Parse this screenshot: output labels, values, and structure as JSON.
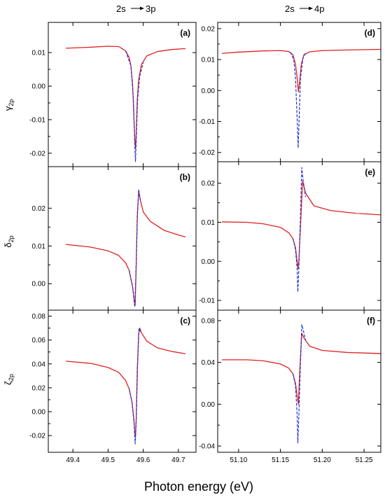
{
  "figure": {
    "column_titles": [
      "2s",
      "3p",
      "2s",
      "4p"
    ],
    "row_ylabels": [
      {
        "greek": "γ",
        "sub": "2p"
      },
      {
        "greek": "δ",
        "sub": "2p"
      },
      {
        "greek": "ζ",
        "sub": "2p"
      }
    ],
    "xlabel": "Photon energy (eV)",
    "colors": {
      "solid": "#e02020",
      "dashed": "#2233dd"
    }
  },
  "chart_data": [
    {
      "type": "line",
      "panel": "(a)",
      "xlim": [
        49.33,
        49.75
      ],
      "ylim": [
        -0.024,
        0.019
      ],
      "yticks": [
        "0.01",
        "0.00",
        "-0.01",
        "-0.02"
      ],
      "ytick_values": [
        0.01,
        0.0,
        -0.01,
        -0.02
      ],
      "xticks": [],
      "xtick_values": [],
      "resonance": {
        "E0": 49.577,
        "width": 0.012,
        "q": 0.0,
        "shift": 0.001
      },
      "series": [
        {
          "style": "solid",
          "points": [
            [
              49.38,
              0.0113
            ],
            [
              49.45,
              0.0116
            ],
            [
              49.5,
              0.0119
            ],
            [
              49.53,
              0.0118
            ],
            [
              49.55,
              0.0105
            ],
            [
              49.56,
              0.0085
            ],
            [
              49.565,
              0.006
            ],
            [
              49.57,
              0.0
            ],
            [
              49.573,
              -0.008
            ],
            [
              49.576,
              -0.016
            ],
            [
              49.578,
              -0.0185
            ],
            [
              49.58,
              -0.014
            ],
            [
              49.583,
              -0.004
            ],
            [
              49.587,
              0.002
            ],
            [
              49.595,
              0.0065
            ],
            [
              49.61,
              0.009
            ],
            [
              49.64,
              0.0103
            ],
            [
              49.68,
              0.0109
            ],
            [
              49.72,
              0.0112
            ]
          ]
        },
        {
          "style": "dashed",
          "points": [
            [
              49.55,
              0.0105
            ],
            [
              49.565,
              0.006
            ],
            [
              49.572,
              -0.004
            ],
            [
              49.576,
              -0.018
            ],
            [
              49.578,
              -0.0225
            ],
            [
              49.58,
              -0.016
            ],
            [
              49.584,
              -0.004
            ],
            [
              49.59,
              0.003
            ],
            [
              49.6,
              0.007
            ]
          ]
        }
      ]
    },
    {
      "type": "line",
      "panel": "(b)",
      "xlim": [
        49.33,
        49.75
      ],
      "ylim": [
        -0.007,
        0.031
      ],
      "yticks": [
        "0.02",
        "0.01",
        "0.00"
      ],
      "ytick_values": [
        0.02,
        0.01,
        0.0
      ],
      "xticks": [],
      "xtick_values": [],
      "series": [
        {
          "style": "solid",
          "points": [
            [
              49.38,
              0.0104
            ],
            [
              49.45,
              0.0097
            ],
            [
              49.5,
              0.0087
            ],
            [
              49.53,
              0.0075
            ],
            [
              49.55,
              0.0055
            ],
            [
              49.56,
              0.0035
            ],
            [
              49.57,
              -0.001
            ],
            [
              49.575,
              -0.005
            ],
            [
              49.577,
              -0.0057
            ],
            [
              49.58,
              0.005
            ],
            [
              49.583,
              0.018
            ],
            [
              49.587,
              0.0245
            ],
            [
              49.592,
              0.022
            ],
            [
              49.6,
              0.019
            ],
            [
              49.62,
              0.0165
            ],
            [
              49.66,
              0.0141
            ],
            [
              49.7,
              0.0129
            ],
            [
              49.72,
              0.0124
            ]
          ]
        },
        {
          "style": "dashed",
          "points": [
            [
              49.56,
              0.0035
            ],
            [
              49.57,
              -0.001
            ],
            [
              49.576,
              -0.0062
            ],
            [
              49.579,
              0.002
            ],
            [
              49.583,
              0.017
            ],
            [
              49.587,
              0.025
            ],
            [
              49.592,
              0.022
            ]
          ]
        }
      ]
    },
    {
      "type": "line",
      "panel": "(c)",
      "xlim": [
        49.33,
        49.75
      ],
      "ylim": [
        -0.034,
        0.085
      ],
      "yticks": [
        "0.08",
        "0.06",
        "0.04",
        "0.02",
        "0.00",
        "-0.02"
      ],
      "ytick_values": [
        0.08,
        0.06,
        0.04,
        0.02,
        0.0,
        -0.02
      ],
      "xticks": [
        "49.4",
        "49.5",
        "49.6",
        "49.7"
      ],
      "xtick_values": [
        49.4,
        49.5,
        49.6,
        49.7
      ],
      "series": [
        {
          "style": "solid",
          "points": [
            [
              49.38,
              0.0423
            ],
            [
              49.45,
              0.0405
            ],
            [
              49.5,
              0.037
            ],
            [
              49.53,
              0.033
            ],
            [
              49.55,
              0.026
            ],
            [
              49.56,
              0.019
            ],
            [
              49.568,
              0.008
            ],
            [
              49.573,
              -0.005
            ],
            [
              49.576,
              -0.018
            ],
            [
              49.578,
              -0.021
            ],
            [
              49.58,
              -0.005
            ],
            [
              49.583,
              0.035
            ],
            [
              49.587,
              0.065
            ],
            [
              49.59,
              0.07
            ],
            [
              49.595,
              0.066
            ],
            [
              49.61,
              0.059
            ],
            [
              49.64,
              0.0535
            ],
            [
              49.68,
              0.0505
            ],
            [
              49.72,
              0.0485
            ]
          ]
        },
        {
          "style": "dashed",
          "points": [
            [
              49.56,
              0.019
            ],
            [
              49.568,
              0.008
            ],
            [
              49.574,
              -0.01
            ],
            [
              49.577,
              -0.027
            ],
            [
              49.58,
              -0.008
            ],
            [
              49.584,
              0.04
            ],
            [
              49.588,
              0.07
            ],
            [
              49.592,
              0.067
            ]
          ]
        }
      ]
    },
    {
      "type": "line",
      "panel": "(d)",
      "xlim": [
        51.075,
        51.27
      ],
      "ylim": [
        -0.023,
        0.022
      ],
      "yticks": [
        "0.02",
        "0.01",
        "0.00",
        "-0.01",
        "-0.02"
      ],
      "ytick_values": [
        0.02,
        0.01,
        0.0,
        -0.01,
        -0.02
      ],
      "xticks": [],
      "xtick_values": [],
      "series": [
        {
          "style": "solid",
          "points": [
            [
              51.08,
              0.012
            ],
            [
              51.1,
              0.0124
            ],
            [
              51.13,
              0.0128
            ],
            [
              51.15,
              0.0129
            ],
            [
              51.16,
              0.0126
            ],
            [
              51.165,
              0.0115
            ],
            [
              51.168,
              0.0085
            ],
            [
              51.17,
              0.004
            ],
            [
              51.1715,
              -0.0005
            ],
            [
              51.173,
              0.003
            ],
            [
              51.175,
              0.0085
            ],
            [
              51.178,
              0.0115
            ],
            [
              51.185,
              0.0125
            ],
            [
              51.2,
              0.0129
            ],
            [
              51.23,
              0.0131
            ],
            [
              51.27,
              0.0133
            ]
          ]
        },
        {
          "style": "dashed",
          "points": [
            [
              51.162,
              0.0124
            ],
            [
              51.166,
              0.01
            ],
            [
              51.168,
              0.004
            ],
            [
              51.17,
              -0.009
            ],
            [
              51.1712,
              -0.0185
            ],
            [
              51.1725,
              -0.008
            ],
            [
              51.174,
              0.004
            ],
            [
              51.177,
              0.0105
            ],
            [
              51.18,
              0.0122
            ]
          ]
        }
      ]
    },
    {
      "type": "line",
      "panel": "(e)",
      "xlim": [
        51.075,
        51.27
      ],
      "ylim": [
        -0.0125,
        0.0255
      ],
      "yticks": [
        "0.02",
        "0.01",
        "0.00",
        "-0.01"
      ],
      "ytick_values": [
        0.02,
        0.01,
        0.0,
        -0.01
      ],
      "xticks": [],
      "xtick_values": [],
      "series": [
        {
          "style": "solid",
          "points": [
            [
              51.08,
              0.0101
            ],
            [
              51.11,
              0.01
            ],
            [
              51.13,
              0.0096
            ],
            [
              51.15,
              0.0087
            ],
            [
              51.16,
              0.0073
            ],
            [
              51.165,
              0.0058
            ],
            [
              51.168,
              0.0035
            ],
            [
              51.17,
              0.0
            ],
            [
              51.171,
              -0.0018
            ],
            [
              51.172,
              0.0
            ],
            [
              51.174,
              0.009
            ],
            [
              51.1765,
              0.0205
            ],
            [
              51.18,
              0.0175
            ],
            [
              51.19,
              0.0142
            ],
            [
              51.21,
              0.013
            ],
            [
              51.24,
              0.0123
            ],
            [
              51.27,
              0.0119
            ]
          ]
        },
        {
          "style": "dashed",
          "points": [
            [
              51.165,
              0.0058
            ],
            [
              51.168,
              0.003
            ],
            [
              51.17,
              -0.002
            ],
            [
              51.1708,
              -0.0078
            ],
            [
              51.172,
              -0.002
            ],
            [
              51.174,
              0.012
            ],
            [
              51.1755,
              0.024
            ],
            [
              51.177,
              0.021
            ],
            [
              51.18,
              0.0165
            ]
          ]
        }
      ]
    },
    {
      "type": "line",
      "panel": "(f)",
      "xlim": [
        51.075,
        51.27
      ],
      "ylim": [
        -0.046,
        0.09
      ],
      "yticks": [
        "0.08",
        "0.04",
        "0.00",
        "-0.04"
      ],
      "ytick_values": [
        0.08,
        0.04,
        0.0,
        -0.04
      ],
      "xticks": [
        "51.10",
        "51.15",
        "51.20",
        "51.25"
      ],
      "xtick_values": [
        51.1,
        51.15,
        51.2,
        51.25
      ],
      "series": [
        {
          "style": "solid",
          "points": [
            [
              51.08,
              0.0425
            ],
            [
              51.11,
              0.0425
            ],
            [
              51.13,
              0.0415
            ],
            [
              51.15,
              0.0385
            ],
            [
              51.16,
              0.0345
            ],
            [
              51.165,
              0.029
            ],
            [
              51.168,
              0.02
            ],
            [
              51.17,
              0.008
            ],
            [
              51.1715,
              0.0
            ],
            [
              51.173,
              0.03
            ],
            [
              51.1755,
              0.068
            ],
            [
              51.178,
              0.0635
            ],
            [
              51.185,
              0.0555
            ],
            [
              51.2,
              0.0515
            ],
            [
              51.23,
              0.0495
            ],
            [
              51.27,
              0.0485
            ]
          ]
        },
        {
          "style": "dashed",
          "points": [
            [
              51.165,
              0.029
            ],
            [
              51.168,
              0.018
            ],
            [
              51.17,
              -0.01
            ],
            [
              51.1708,
              -0.037
            ],
            [
              51.172,
              -0.012
            ],
            [
              51.174,
              0.04
            ],
            [
              51.1755,
              0.076
            ],
            [
              51.177,
              0.072
            ],
            [
              51.18,
              0.061
            ]
          ]
        }
      ]
    }
  ]
}
